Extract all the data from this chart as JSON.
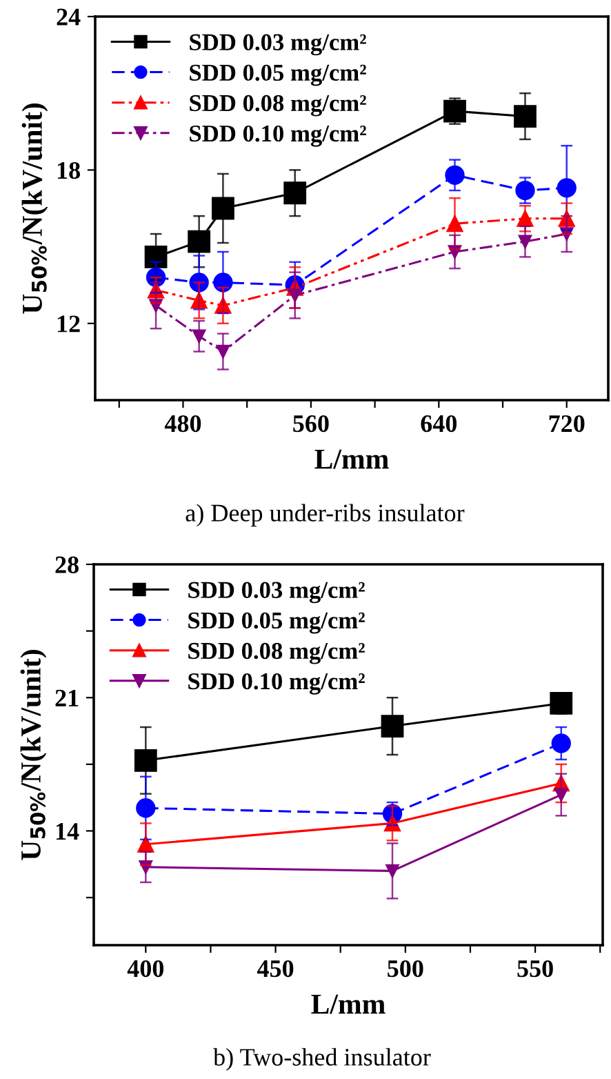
{
  "chart_data": [
    {
      "type": "line",
      "xlabel": "L/mm",
      "ylabel": "U$_{50%}$/N(kV/unit)",
      "annotations": [
        "a) Deep under-ribs insulator"
      ],
      "xlim": [
        425,
        746
      ],
      "ylim": [
        9,
        24
      ],
      "xticks": [
        {
          "value": 440,
          "label": null
        },
        480,
        {
          "value": 520,
          "label": null
        },
        560,
        {
          "value": 600,
          "label": null
        },
        640,
        {
          "value": 680,
          "label": null
        },
        720
      ],
      "yticks": [
        12,
        18,
        24
      ],
      "legend": "top left",
      "grid": false,
      "series": [
        {
          "name": "SDD 0.03 mg/cm²",
          "color": "#000000",
          "marker": "square",
          "line_style": "solid",
          "x": [
            463,
            490,
            505,
            550,
            650,
            694
          ],
          "values": [
            14.6,
            15.2,
            16.5,
            17.1,
            20.3,
            20.1
          ],
          "errors": [
            0.9,
            1.0,
            1.35,
            0.9,
            0.5,
            0.9
          ]
        },
        {
          "name": "SDD 0.05 mg/cm²",
          "color": "#0000ff",
          "marker": "circle",
          "line_style": "dashed",
          "x": [
            463,
            490,
            505,
            550,
            650,
            694,
            720
          ],
          "values": [
            13.8,
            13.6,
            13.6,
            13.5,
            17.8,
            17.2,
            17.3
          ],
          "errors": [
            0.6,
            1.05,
            1.2,
            0.9,
            0.6,
            0.5,
            1.65
          ]
        },
        {
          "name": "SDD 0.08 mg/cm²",
          "color": "#ff0000",
          "marker": "triangle",
          "line_style": "dashdotdot",
          "x": [
            463,
            490,
            505,
            550,
            650,
            694,
            720
          ],
          "values": [
            13.3,
            12.9,
            12.7,
            13.4,
            15.9,
            16.1,
            16.1
          ],
          "errors": [
            0.5,
            0.7,
            0.7,
            0.8,
            1.0,
            0.5,
            0.6
          ]
        },
        {
          "name": "SDD 0.10 mg/cm²",
          "color": "#800080",
          "marker": "triangle_down",
          "line_style": "dashdot",
          "x": [
            463,
            490,
            505,
            550,
            650,
            694,
            720
          ],
          "values": [
            12.7,
            11.5,
            10.9,
            13.1,
            14.8,
            15.2,
            15.5
          ],
          "errors": [
            0.9,
            0.6,
            0.7,
            0.9,
            0.65,
            0.6,
            0.7
          ]
        }
      ]
    },
    {
      "type": "line",
      "xlabel": "L/mm",
      "ylabel": "U$_{50%}$/N(kV/unit)",
      "annotations": [
        "b) Two-shed insulator"
      ],
      "xlim": [
        380,
        576
      ],
      "ylim": [
        8,
        28
      ],
      "xticks": [
        400,
        {
          "value": 425,
          "label": null
        },
        450,
        {
          "value": 475,
          "label": null
        },
        500,
        {
          "value": 525,
          "label": null
        },
        550,
        {
          "value": 575,
          "label": null
        }
      ],
      "yticks": [
        {
          "value": 10.5,
          "label": null
        },
        14,
        {
          "value": 17.5,
          "label": null
        },
        21,
        {
          "value": 24.5,
          "label": null
        },
        28
      ],
      "legend": "top left",
      "grid": false,
      "series": [
        {
          "name": "SDD 0.03 mg/cm²",
          "color": "#000000",
          "marker": "square",
          "line_style": "solid",
          "x": [
            400,
            495,
            560
          ],
          "values": [
            17.7,
            19.5,
            20.7
          ],
          "errors": [
            1.75,
            1.5,
            0.55
          ]
        },
        {
          "name": "SDD 0.05 mg/cm²",
          "color": "#0000ff",
          "marker": "circle",
          "line_style": "dashed",
          "x": [
            400,
            495,
            560
          ],
          "values": [
            15.2,
            14.9,
            18.6
          ],
          "errors": [
            1.65,
            0.6,
            0.85
          ]
        },
        {
          "name": "SDD 0.08 mg/cm²",
          "color": "#ff0000",
          "marker": "triangle",
          "line_style": "solid",
          "x": [
            400,
            495,
            560
          ],
          "values": [
            13.3,
            14.4,
            16.5
          ],
          "errors": [
            1.1,
            0.9,
            1.0
          ]
        },
        {
          "name": "SDD 0.10 mg/cm²",
          "color": "#800080",
          "marker": "triangle_down",
          "line_style": "solid",
          "x": [
            400,
            495,
            560
          ],
          "values": [
            12.1,
            11.9,
            15.9
          ],
          "errors": [
            0.8,
            1.45,
            1.1
          ]
        }
      ]
    }
  ]
}
